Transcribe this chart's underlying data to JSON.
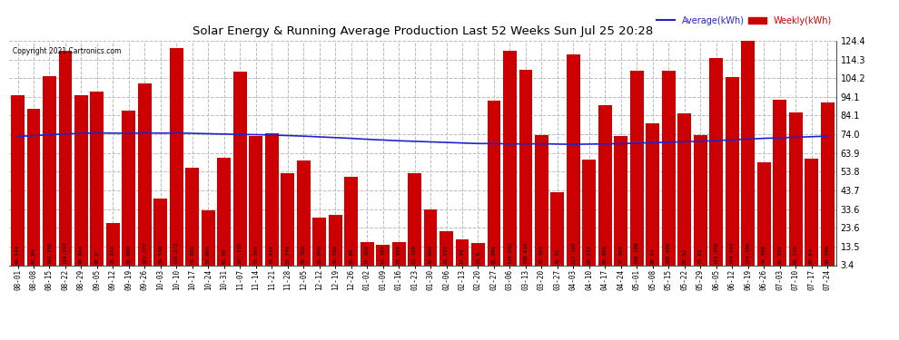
{
  "title": "Solar Energy & Running Average Production Last 52 Weeks Sun Jul 25 20:28",
  "copyright": "Copyright 2021 Cartronics.com",
  "legend_avg": "Average(kWh)",
  "legend_weekly": "Weekly(kWh)",
  "bar_color": "#cc0000",
  "avg_line_color": "#2222cc",
  "background_color": "#ffffff",
  "plot_bg_color": "#ffffff",
  "grid_color": "#bbbbbb",
  "ylim": [
    3.4,
    124.4
  ],
  "yticks": [
    3.4,
    13.5,
    23.6,
    33.6,
    43.7,
    53.8,
    63.9,
    74.0,
    84.1,
    94.1,
    104.2,
    114.3,
    124.4
  ],
  "categories": [
    "08-01",
    "08-08",
    "08-15",
    "08-22",
    "08-29",
    "09-05",
    "09-12",
    "09-19",
    "09-26",
    "10-03",
    "10-10",
    "10-17",
    "10-24",
    "10-31",
    "11-07",
    "11-14",
    "11-21",
    "11-28",
    "12-05",
    "12-12",
    "12-19",
    "12-26",
    "01-02",
    "01-09",
    "01-16",
    "01-23",
    "01-30",
    "02-06",
    "02-13",
    "02-20",
    "02-27",
    "03-06",
    "03-13",
    "03-20",
    "03-27",
    "04-03",
    "04-10",
    "04-17",
    "04-24",
    "05-01",
    "05-08",
    "05-15",
    "05-22",
    "05-29",
    "06-05",
    "06-12",
    "06-19",
    "06-26",
    "07-03",
    "07-10",
    "07-17",
    "07-24"
  ],
  "weekly_values": [
    95.144,
    87.84,
    105.356,
    119.244,
    94.864,
    97.0,
    25.932,
    86.608,
    101.272,
    39.548,
    120.272,
    55.888,
    33.004,
    61.56,
    107.816,
    73.304,
    74.424,
    53.144,
    59.768,
    29.048,
    30.768,
    50.88,
    16.068,
    14.384,
    15.928,
    53.168,
    33.604,
    21.732,
    17.18,
    15.6,
    91.996,
    119.092,
    108.616,
    73.464,
    42.52,
    117.168,
    60.232,
    89.896,
    72.908,
    108.108,
    80.04,
    108.096,
    85.52,
    73.62,
    115.256,
    104.844,
    124.396,
    58.708,
    92.532,
    85.736,
    60.64,
    91.296
  ],
  "avg_values": [
    72.8,
    73.3,
    73.7,
    74.2,
    74.5,
    74.7,
    74.6,
    74.5,
    74.7,
    74.6,
    74.7,
    74.5,
    74.3,
    74.1,
    73.9,
    73.8,
    73.6,
    73.3,
    73.0,
    72.6,
    72.2,
    71.8,
    71.3,
    70.9,
    70.5,
    70.2,
    69.9,
    69.6,
    69.3,
    69.0,
    69.0,
    68.8,
    68.8,
    68.9,
    68.7,
    68.6,
    68.7,
    68.8,
    69.0,
    69.2,
    69.5,
    69.7,
    70.0,
    70.2,
    70.6,
    71.0,
    71.4,
    71.8,
    72.1,
    72.4,
    72.7,
    73.0
  ]
}
